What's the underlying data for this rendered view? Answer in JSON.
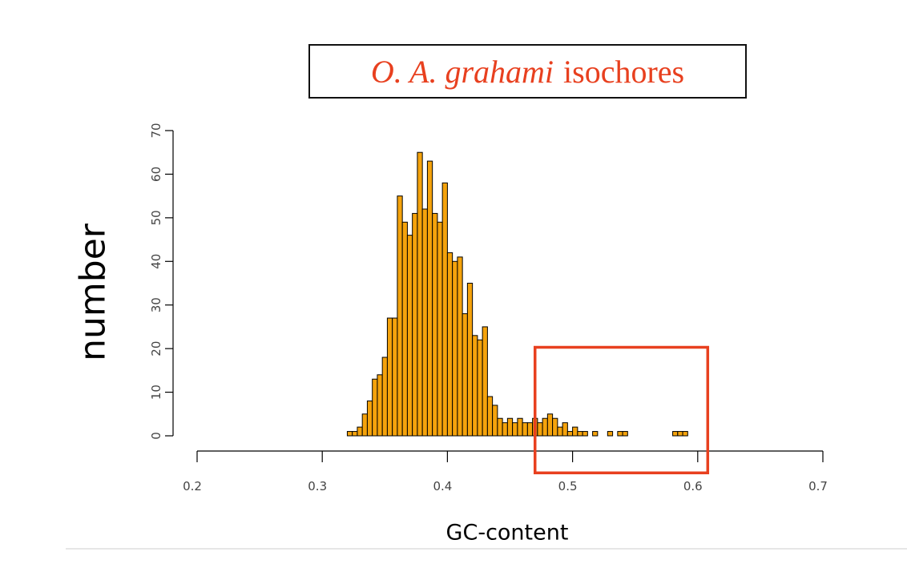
{
  "title": {
    "species": "O. A. grahami",
    "rest": "isochores"
  },
  "chart_data": {
    "type": "bar",
    "subtype": "histogram",
    "title": "O. A. grahami  isochores",
    "xlabel": "GC-content",
    "ylabel": "number",
    "xlim": [
      0.2,
      0.7
    ],
    "ylim": [
      0,
      70
    ],
    "x_ticks": [
      "0.2",
      "0.3",
      "0.4",
      "0.5",
      "0.6",
      "0.7"
    ],
    "y_ticks": [
      "0",
      "10",
      "20",
      "30",
      "40",
      "50",
      "60",
      "70"
    ],
    "bin_width": 0.004,
    "bins_start": [
      0.32,
      0.324,
      0.328,
      0.332,
      0.336,
      0.34,
      0.344,
      0.348,
      0.352,
      0.356,
      0.36,
      0.364,
      0.368,
      0.372,
      0.376,
      0.38,
      0.384,
      0.388,
      0.392,
      0.396,
      0.4,
      0.404,
      0.408,
      0.412,
      0.416,
      0.42,
      0.424,
      0.428,
      0.432,
      0.436,
      0.44,
      0.444,
      0.448,
      0.452,
      0.456,
      0.46,
      0.464,
      0.468,
      0.472,
      0.476,
      0.48,
      0.484,
      0.488,
      0.492,
      0.496,
      0.5,
      0.504,
      0.508,
      0.512,
      0.516,
      0.52,
      0.524,
      0.528,
      0.532,
      0.536,
      0.54,
      0.544,
      0.548,
      0.552,
      0.556,
      0.56,
      0.564,
      0.568,
      0.572,
      0.576,
      0.58,
      0.584,
      0.588
    ],
    "values": [
      1,
      1,
      2,
      5,
      8,
      13,
      14,
      18,
      27,
      27,
      55,
      49,
      46,
      51,
      65,
      52,
      63,
      51,
      49,
      58,
      42,
      40,
      41,
      28,
      35,
      23,
      22,
      25,
      9,
      7,
      4,
      3,
      4,
      3,
      4,
      3,
      3,
      4,
      3,
      4,
      5,
      4,
      2,
      3,
      1,
      2,
      1,
      1,
      0,
      1,
      0,
      0,
      1,
      0,
      1,
      1,
      0,
      0,
      0,
      0,
      0,
      0,
      0,
      0,
      0,
      1,
      1,
      1
    ],
    "bar_color": "#f5a30c",
    "bar_edge_color": "#000000",
    "highlight": {
      "shape": "rectangle",
      "x_range": [
        0.47,
        0.608
      ],
      "y_range": [
        -8.5,
        20.3
      ],
      "color": "#e8401f"
    },
    "grid": false,
    "legend": "none"
  }
}
